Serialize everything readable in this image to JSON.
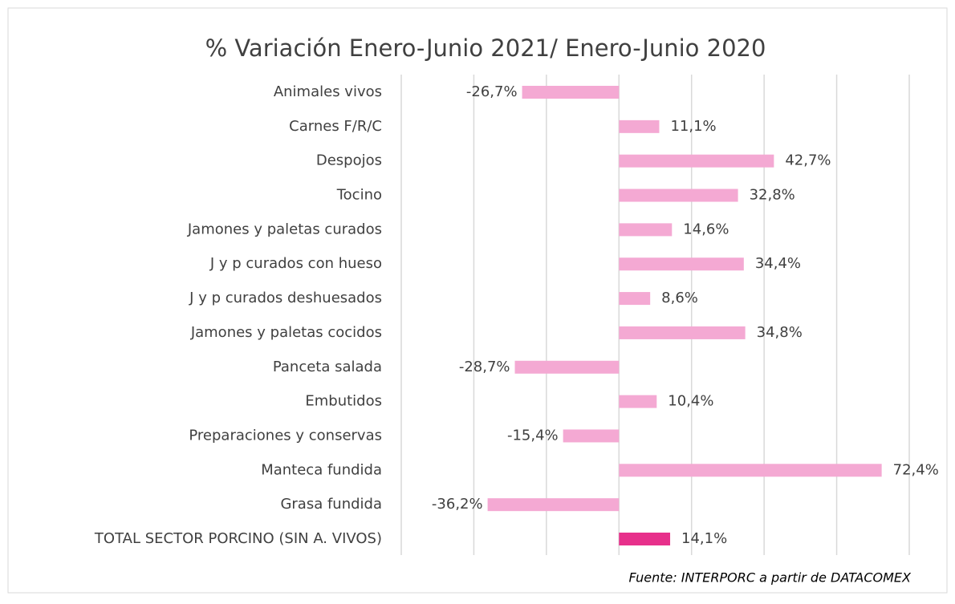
{
  "chart_data": {
    "type": "hbar",
    "title": "% Variación Enero-Junio 2021/ Enero-Junio 2020",
    "source": "Fuente: INTERPORC  a partir de DATACOMEX",
    "categories": [
      "Animales vivos",
      "Carnes F/R/C",
      "Despojos",
      "Tocino",
      "Jamones y paletas curados",
      "J y p curados con hueso",
      "J y p curados deshuesados",
      "Jamones y paletas cocidos",
      "Panceta salada",
      "Embutidos",
      "Preparaciones y conservas",
      "Manteca fundida",
      "Grasa fundida",
      "TOTAL SECTOR PORCINO (SIN A. VIVOS)"
    ],
    "values": [
      -26.7,
      11.1,
      42.7,
      32.8,
      14.6,
      34.4,
      8.6,
      34.8,
      -28.7,
      10.4,
      -15.4,
      72.4,
      -36.2,
      14.1
    ],
    "value_labels": [
      "-26,7%",
      "11,1%",
      "42,7%",
      "32,8%",
      "14,6%",
      "34,4%",
      "8,6%",
      "34,8%",
      "-28,7%",
      "10,4%",
      "-15,4%",
      "72,4%",
      "-36,2%",
      "14,1%"
    ],
    "colors": [
      "#f4a9d3",
      "#f4a9d3",
      "#f4a9d3",
      "#f4a9d3",
      "#f4a9d3",
      "#f4a9d3",
      "#f4a9d3",
      "#f4a9d3",
      "#f4a9d3",
      "#f4a9d3",
      "#f4a9d3",
      "#f4a9d3",
      "#f4a9d3",
      "#e7308b"
    ],
    "xlim": [
      -60,
      80
    ],
    "xticks": [
      -60,
      -40,
      -20,
      0,
      20,
      40,
      60,
      80
    ],
    "grid": true
  }
}
